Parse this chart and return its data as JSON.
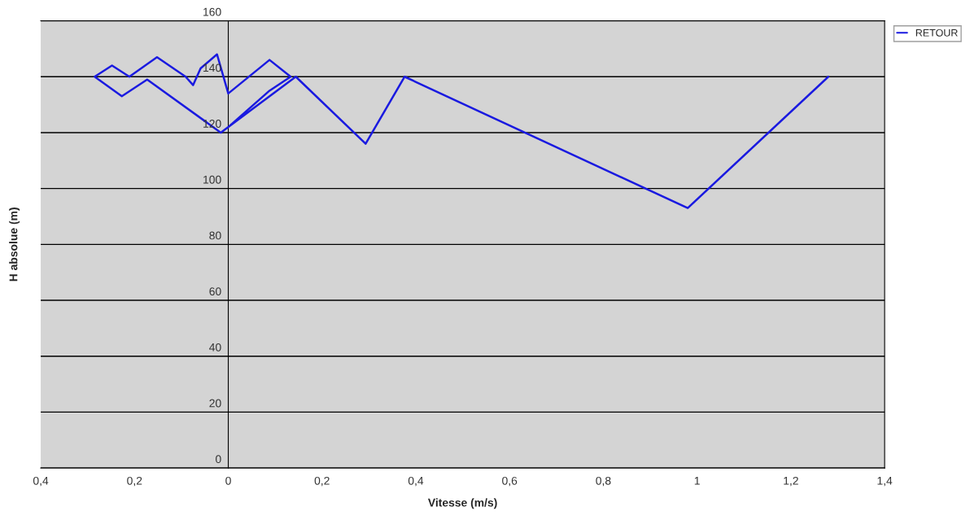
{
  "chart_data": {
    "type": "line",
    "xlabel": "Vitesse (m/s)",
    "ylabel": "H absolue (m)",
    "series": [
      {
        "name": "RETOUR",
        "color": "#1a1ae0",
        "x": [
          1.28,
          0.98,
          0.376,
          0.293,
          0.144,
          -0.016,
          -0.173,
          -0.227,
          -0.285,
          -0.248,
          -0.211,
          -0.152,
          -0.091,
          -0.075,
          -0.059,
          -0.024,
          0.0,
          0.088,
          0.133,
          0.088,
          0.0
        ],
        "values": [
          140,
          93,
          140,
          116,
          140,
          120,
          139,
          133,
          140,
          144,
          140,
          147,
          140,
          137,
          143,
          148,
          134,
          146,
          140,
          135,
          122
        ]
      }
    ],
    "xlim": [
      -0.4,
      1.4
    ],
    "xticks": [
      {
        "value": -0.4,
        "label": "0,4"
      },
      {
        "value": -0.2,
        "label": "0,2"
      },
      0,
      {
        "value": 0.2,
        "label": "0,2"
      },
      {
        "value": 0.4,
        "label": "0,4"
      },
      {
        "value": 0.6,
        "label": "0,6"
      },
      {
        "value": 0.8,
        "label": "0,8"
      },
      1,
      {
        "value": 1.2,
        "label": "1,2"
      },
      {
        "value": 1.4,
        "label": "1,4"
      }
    ],
    "ylim": [
      0,
      160
    ],
    "yticks": [
      0,
      20,
      40,
      60,
      80,
      100,
      120,
      140,
      160
    ],
    "grid": "y",
    "legend": "top right",
    "marker": "none",
    "line_style": "solid"
  }
}
